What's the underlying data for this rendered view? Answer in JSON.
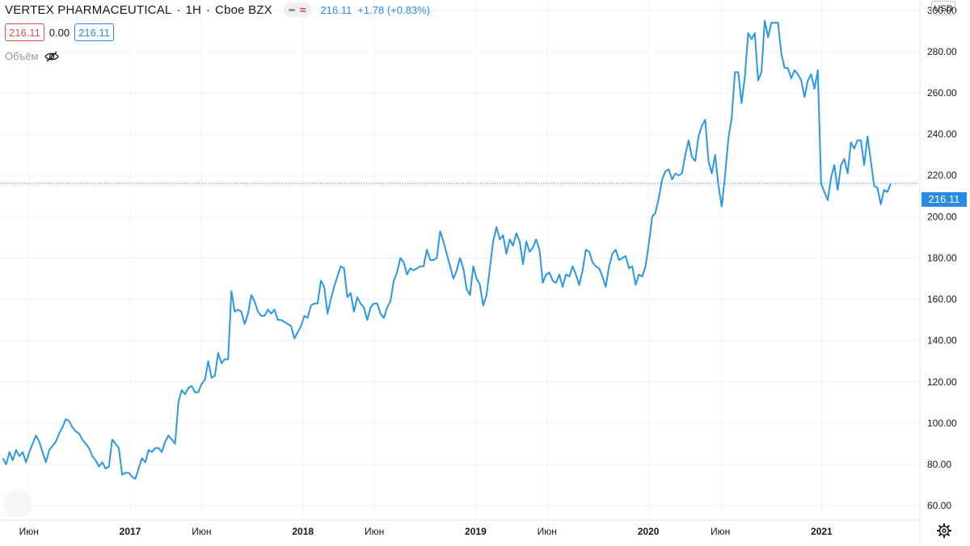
{
  "header": {
    "symbol": "VERTEX PHARMACEUTICAL",
    "interval": "1Н",
    "exchange": "Cboe BZX",
    "last_price": "216.11",
    "change": "+1.78 (+0.83%)",
    "open_value": "216.11",
    "mid_value": "0.00",
    "close_value": "216.11",
    "volume_label": "Объём",
    "currency": "USD",
    "icons": [
      "minus-icon",
      "approx-icon",
      "eye-off-icon",
      "gear-icon"
    ]
  },
  "colors": {
    "line": "#2a98e6",
    "price_tag": "#2a8be6",
    "red_box": "#e5504f",
    "grid": "#f0f3fa"
  },
  "chart_data": {
    "type": "line",
    "title": "",
    "xlabel": "",
    "ylabel": "",
    "current_price": 216.11,
    "ylim": [
      53,
      305
    ],
    "y_ticks": [
      60,
      80,
      100,
      120,
      140,
      160,
      180,
      200,
      220,
      240,
      260,
      280,
      300
    ],
    "y_tick_labels": [
      "60.00",
      "80.00",
      "100.00",
      "120.00",
      "140.00",
      "160.00",
      "180.00",
      "200.00",
      "220.00",
      "240.00",
      "260.00",
      "280.00",
      "300.00"
    ],
    "x_ticks": [
      "2016-06-01",
      "2017-01-01",
      "2017-06-01",
      "2018-01-01",
      "2018-06-01",
      "2019-01-01",
      "2019-06-01",
      "2020-01-01",
      "2020-06-01",
      "2021-01-01"
    ],
    "x_tick_labels": [
      "Июн",
      "2017",
      "Июн",
      "2018",
      "Июн",
      "2019",
      "Июн",
      "2020",
      "Июн",
      "2021"
    ],
    "x_range": [
      "2016-04-01",
      "2021-07-26"
    ],
    "grid": true,
    "legend": "none",
    "series": [
      {
        "frequency": "weekly",
        "start": "2016-04-07",
        "values": [
          83,
          80,
          86,
          82,
          87,
          84,
          86,
          81,
          86,
          90,
          94,
          91,
          86,
          81,
          87,
          89,
          91,
          95,
          98,
          102,
          101,
          98,
          96,
          95,
          92,
          90,
          88,
          84,
          82,
          79,
          81,
          78,
          79,
          92,
          90,
          88,
          75,
          76,
          76,
          74,
          73,
          78,
          83,
          81,
          87,
          86,
          88,
          88,
          86,
          91,
          94,
          92,
          90,
          110,
          116,
          114,
          117,
          118,
          115,
          115,
          119,
          121,
          130,
          122,
          123,
          134,
          129,
          131,
          131,
          164,
          154,
          155,
          154,
          148,
          153,
          162,
          159,
          154,
          152,
          152,
          155,
          153,
          155,
          150,
          150,
          149,
          148,
          147,
          141,
          144,
          147,
          152,
          151,
          157,
          158,
          158,
          169,
          166,
          153,
          160,
          166,
          171,
          176,
          175,
          161,
          163,
          154,
          161,
          158,
          156,
          150,
          156,
          158,
          158,
          153,
          151,
          156,
          159,
          169,
          173,
          180,
          178,
          172,
          175,
          174,
          175,
          176,
          176,
          184,
          179,
          179,
          180,
          193,
          188,
          182,
          176,
          170,
          174,
          180,
          175,
          165,
          162,
          176,
          170,
          167,
          157,
          162,
          175,
          188,
          195,
          189,
          191,
          182,
          189,
          186,
          192,
          188,
          177,
          188,
          183,
          185,
          189,
          184,
          168,
          172,
          173,
          169,
          168,
          172,
          166,
          172,
          171,
          176,
          172,
          167,
          174,
          184,
          183,
          178,
          176,
          175,
          171,
          166,
          176,
          182,
          184,
          179,
          180,
          181,
          175,
          176,
          167,
          172,
          171,
          176,
          187,
          200,
          202,
          209,
          218,
          222,
          223,
          218,
          221,
          220,
          221,
          230,
          237,
          229,
          227,
          239,
          244,
          247,
          227,
          221,
          230,
          215,
          205,
          220,
          238,
          248,
          270,
          270,
          255,
          268,
          289,
          286,
          289,
          266,
          270,
          295,
          287,
          294,
          294,
          294,
          279,
          272,
          272,
          267,
          271,
          269,
          266,
          258,
          266,
          269,
          262,
          271,
          216,
          212,
          208,
          219,
          225,
          213,
          225,
          228,
          221,
          236,
          233,
          237,
          237,
          225,
          239,
          227,
          215,
          214,
          206,
          213,
          212,
          216
        ]
      }
    ]
  }
}
